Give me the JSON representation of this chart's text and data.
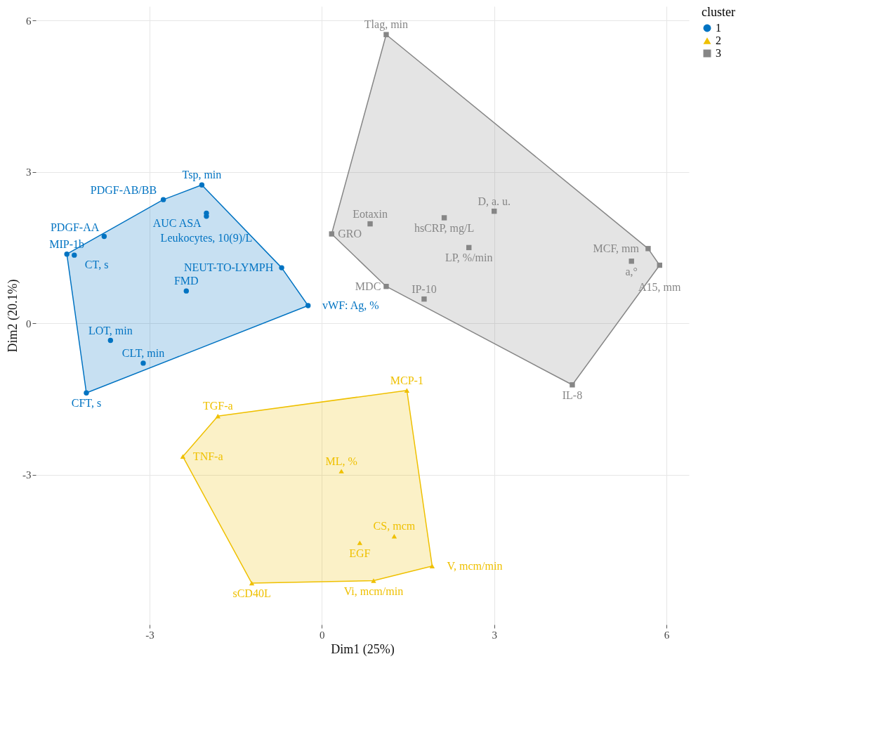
{
  "chart_data": {
    "type": "scatter",
    "xlabel": "Dim1 (25%)",
    "ylabel": "Dim2 (20.1%)",
    "legend_title": "cluster",
    "legend": "right",
    "grid": true,
    "xlim": [
      -4.98,
      6.39
    ],
    "ylim": [
      -5.97,
      6.28
    ],
    "xticks": [
      -3,
      0,
      3,
      6
    ],
    "yticks": [
      -3,
      0,
      3,
      6
    ],
    "series": [
      {
        "type": "area",
        "color": "#0073c2",
        "x": [
          -4.44,
          -4.1,
          -0.24,
          -0.7,
          -2.09,
          -2.76,
          -4.44
        ],
        "values": [
          1.37,
          -1.38,
          0.35,
          1.1,
          2.74,
          2.45,
          1.37
        ]
      },
      {
        "type": "area",
        "color": "#efc000",
        "x": [
          -1.81,
          -2.42,
          -1.22,
          0.9,
          1.92,
          1.48,
          -1.81
        ],
        "values": [
          -1.84,
          -2.64,
          -5.15,
          -5.1,
          -4.81,
          -1.33,
          -1.84
        ]
      },
      {
        "type": "area",
        "color": "#868686",
        "x": [
          1.12,
          0.17,
          1.12,
          4.36,
          5.88,
          5.68,
          1.12
        ],
        "values": [
          5.72,
          1.77,
          0.73,
          -1.22,
          1.15,
          1.48,
          5.72
        ]
      },
      {
        "name": "1",
        "color": "#0073c2",
        "marker": "circle",
        "x": [
          -2.09,
          -2.76,
          -2.01,
          -2.01,
          -3.79,
          -4.44,
          -4.31,
          -0.7,
          -2.36,
          -0.24,
          -3.68,
          -3.11,
          -4.1
        ],
        "values": [
          2.74,
          2.45,
          2.18,
          2.12,
          1.72,
          1.37,
          1.35,
          1.1,
          0.64,
          0.35,
          -0.34,
          -0.79,
          -1.38
        ],
        "value_labels": [
          "Tsp, min",
          "PDGF-AB/BB",
          "AUC ASA",
          "Leukocytes, 10(9)/L",
          "PDGF-AA",
          "MIP-1b",
          "CT, s",
          "NEUT-TO-LYMPH",
          "FMD",
          "vWF: Ag, %",
          "LOT, min",
          "CLT, min",
          "CFT, s"
        ]
      },
      {
        "name": "2",
        "color": "#efc000",
        "marker": "triangle",
        "x": [
          -1.81,
          1.48,
          -2.42,
          0.34,
          1.26,
          0.66,
          1.92,
          -1.22,
          0.9
        ],
        "values": [
          -1.84,
          -1.33,
          -2.64,
          -2.93,
          -4.22,
          -4.35,
          -4.81,
          -5.15,
          -5.1
        ],
        "value_labels": [
          "TGF-a",
          "MCP-1",
          "TNF-a",
          "ML, %",
          "CS, mcm",
          "EGF",
          "V, mcm/min",
          "sCD40L",
          "Vi, mcm/min"
        ]
      },
      {
        "name": "3",
        "color": "#868686",
        "marker": "square",
        "x": [
          1.12,
          3.0,
          0.84,
          2.13,
          0.17,
          5.68,
          2.56,
          5.39,
          5.88,
          1.12,
          1.78,
          4.36
        ],
        "values": [
          5.72,
          2.22,
          1.97,
          2.09,
          1.77,
          1.48,
          1.5,
          1.23,
          1.15,
          0.73,
          0.48,
          -1.22
        ],
        "value_labels": [
          "Tlag, min",
          "D, a. u.",
          "Eotaxin",
          "hsCRP, mg/L",
          "GRO",
          "MCF, mm",
          "LP, %/min",
          "a,°",
          "A15, mm",
          "MDC",
          "IP-10",
          "IL-8"
        ]
      }
    ]
  }
}
